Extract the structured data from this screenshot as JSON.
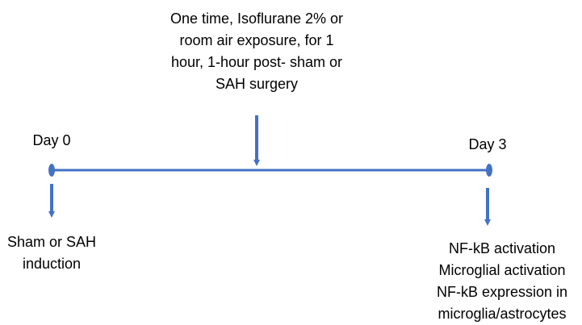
{
  "top_note": {
    "lines": [
      "One time, Isoflurane 2% or",
      "room air exposure, for 1",
      "hour, 1-hour post- sham or",
      "SAH surgery"
    ]
  },
  "start": {
    "label": "Day 0",
    "lines": [
      "Sham or SAH",
      "induction"
    ]
  },
  "end": {
    "label": "Day 3",
    "lines": [
      "NF-kB activation",
      "Microglial activation",
      "NF-kB expression in",
      "microglia/astrocytes"
    ]
  }
}
